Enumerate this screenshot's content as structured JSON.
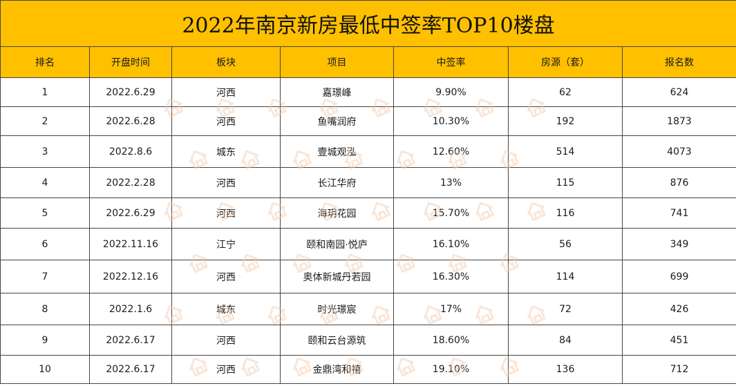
{
  "title": "2022年南京新房最低中签率TOP10楼盘",
  "columns": [
    "排名",
    "开盘时间",
    "板块",
    "项目",
    "中签率",
    "房源（套）",
    "报名数"
  ],
  "rows": [
    [
      "1",
      "2022.6.29",
      "河西",
      "嘉璟峰",
      "9.90%",
      "62",
      "624"
    ],
    [
      "2",
      "2022.6.28",
      "河西",
      "鱼嘴润府",
      "10.30%",
      "192",
      "1873"
    ],
    [
      "3",
      "2022.8.6",
      "城东",
      "壹城观泓",
      "12.60%",
      "514",
      "4073"
    ],
    [
      "4",
      "2022.2.28",
      "河西",
      "长江华府",
      "13%",
      "115",
      "876"
    ],
    [
      "5",
      "2022.6.29",
      "河西",
      "海玥花园",
      "15.70%",
      "116",
      "741"
    ],
    [
      "6",
      "2022.11.16",
      "江宁",
      "颐和南园·悦庐",
      "16.10%",
      "56",
      "349"
    ],
    [
      "7",
      "2022.12.16",
      "河西",
      "奥体新城丹若园",
      "16.30%",
      "114",
      "699"
    ],
    [
      "8",
      "2022.1.6",
      "城东",
      "时光璟宸",
      "17%",
      "72",
      "426"
    ],
    [
      "9",
      "2022.6.17",
      "河西",
      "颐和云台源筑",
      "18.60%",
      "84",
      "451"
    ],
    [
      "10",
      "2022.6.17",
      "河西",
      "金鼎湾和禧",
      "19.10%",
      "136",
      "712"
    ]
  ],
  "colors": {
    "header_bg": "#ffc000",
    "border": "#444444",
    "watermark": "#f2c7a8"
  },
  "watermark_icon": "house-logo-icon"
}
